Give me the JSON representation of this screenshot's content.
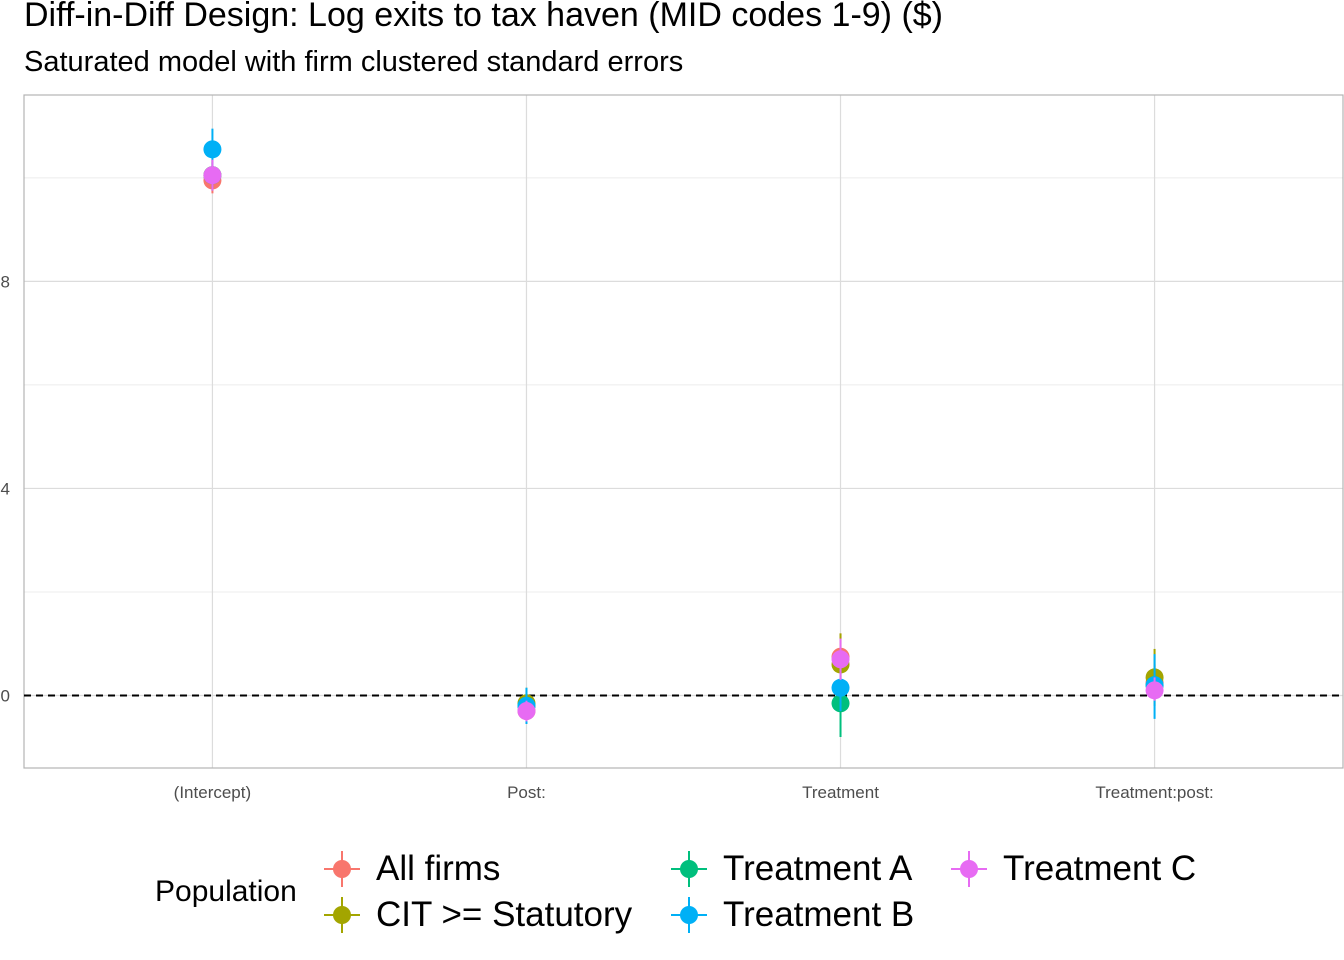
{
  "title": "Diff-in-Diff Design: Log exits to tax haven (MID codes 1-9)  ($)",
  "subtitle": "Saturated model with firm clustered standard errors",
  "legend": {
    "title": "Population",
    "items": [
      {
        "label": "All firms",
        "color": "#F8766D"
      },
      {
        "label": "CIT >= Statutory",
        "color": "#A3A500"
      },
      {
        "label": "Treatment A",
        "color": "#00BF7D"
      },
      {
        "label": "Treatment B",
        "color": "#00B0F6"
      },
      {
        "label": "Treatment C",
        "color": "#E76BF3"
      }
    ]
  },
  "chart_data": {
    "type": "scatter",
    "title": "Diff-in-Diff Design: Log exits to tax haven (MID codes 1-9)  ($)",
    "subtitle": "Saturated model with firm clustered standard errors",
    "xlabel": "",
    "ylabel": "",
    "categories": [
      "(Intercept)",
      "Post:",
      "Treatment",
      "Treatment:post:"
    ],
    "y_ticks": [
      0,
      4,
      8
    ],
    "y_tick_labels": [
      "0",
      "4",
      "8"
    ],
    "ylim": [
      -1.4,
      11.6
    ],
    "grid": true,
    "reference_line": {
      "y": 0,
      "style": "dashed"
    },
    "legend_position": "bottom",
    "series": [
      {
        "name": "All firms",
        "color": "#F8766D",
        "values": [
          9.95,
          -0.3,
          0.75,
          0.25
        ],
        "lower": [
          9.7,
          -0.5,
          0.3,
          -0.1
        ],
        "upper": [
          10.2,
          -0.1,
          1.2,
          0.6
        ]
      },
      {
        "name": "CIT >= Statutory",
        "color": "#A3A500",
        "values": [
          10.05,
          -0.15,
          0.6,
          0.35
        ],
        "lower": [
          9.75,
          -0.35,
          0.1,
          -0.2
        ],
        "upper": [
          10.35,
          0.15,
          1.2,
          0.9
        ]
      },
      {
        "name": "Treatment A",
        "color": "#00BF7D",
        "values": [
          10.05,
          -0.2,
          -0.15,
          0.2
        ],
        "lower": [
          9.8,
          -0.45,
          -0.8,
          -0.05
        ],
        "upper": [
          10.3,
          0.05,
          0.5,
          0.45
        ]
      },
      {
        "name": "Treatment B",
        "color": "#00B0F6",
        "values": [
          10.55,
          -0.2,
          0.15,
          0.2
        ],
        "lower": [
          10.15,
          -0.55,
          -0.3,
          -0.45
        ],
        "upper": [
          10.95,
          0.15,
          0.6,
          0.8
        ]
      },
      {
        "name": "Treatment C",
        "color": "#E76BF3",
        "values": [
          10.05,
          -0.3,
          0.7,
          0.1
        ],
        "lower": [
          9.75,
          -0.5,
          0.3,
          -0.1
        ],
        "upper": [
          10.35,
          -0.1,
          1.1,
          0.35
        ]
      }
    ]
  }
}
